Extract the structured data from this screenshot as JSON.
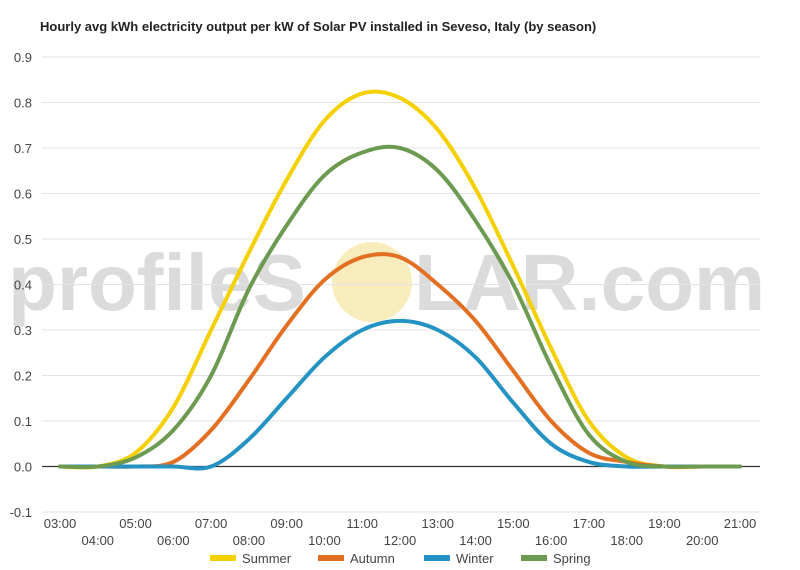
{
  "chart_data": {
    "type": "line",
    "title": "Hourly avg kWh electricity output per kW of Solar PV installed in Seveso, Italy (by season)",
    "xlabel": "",
    "ylabel": "",
    "x": [
      "03:00",
      "04:00",
      "05:00",
      "06:00",
      "07:00",
      "08:00",
      "09:00",
      "10:00",
      "11:00",
      "12:00",
      "13:00",
      "14:00",
      "15:00",
      "16:00",
      "17:00",
      "18:00",
      "19:00",
      "20:00",
      "21:00"
    ],
    "ylim": [
      -0.1,
      0.9
    ],
    "yticks": [
      "-0.1",
      "0.0",
      "0.1",
      "0.2",
      "0.3",
      "0.4",
      "0.5",
      "0.6",
      "0.7",
      "0.8",
      "0.9"
    ],
    "grid": true,
    "legend": "bottom",
    "series": [
      {
        "name": "Summer",
        "color": "#f5d000",
        "values": [
          0.0,
          0.0,
          0.03,
          0.13,
          0.3,
          0.47,
          0.63,
          0.76,
          0.82,
          0.81,
          0.74,
          0.61,
          0.44,
          0.26,
          0.1,
          0.02,
          0.0,
          0.0,
          0.0
        ]
      },
      {
        "name": "Autumn",
        "color": "#e36f22",
        "values": [
          0.0,
          0.0,
          0.0,
          0.01,
          0.08,
          0.19,
          0.31,
          0.41,
          0.46,
          0.46,
          0.4,
          0.32,
          0.21,
          0.1,
          0.03,
          0.01,
          0.0,
          0.0,
          0.0
        ]
      },
      {
        "name": "Winter",
        "color": "#2493c4",
        "values": [
          0.0,
          0.0,
          0.0,
          0.0,
          0.0,
          0.06,
          0.15,
          0.24,
          0.3,
          0.32,
          0.3,
          0.24,
          0.14,
          0.05,
          0.01,
          0.0,
          0.0,
          0.0,
          0.0
        ]
      },
      {
        "name": "Spring",
        "color": "#6b9a50",
        "values": [
          0.0,
          0.0,
          0.02,
          0.08,
          0.2,
          0.39,
          0.53,
          0.64,
          0.69,
          0.7,
          0.65,
          0.54,
          0.4,
          0.22,
          0.07,
          0.01,
          0.0,
          0.0,
          0.0
        ]
      }
    ]
  },
  "watermark": {
    "text_left": "profileS",
    "text_right": "LAR.com"
  }
}
